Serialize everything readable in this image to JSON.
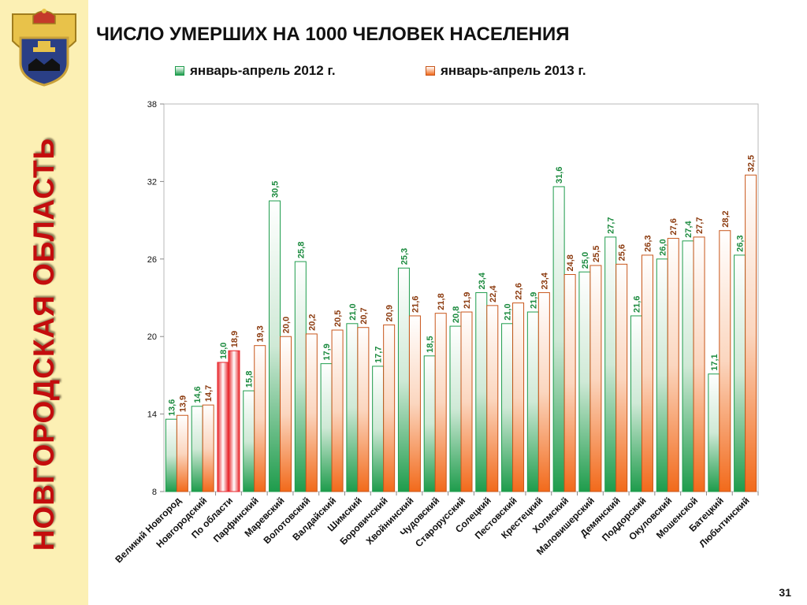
{
  "sidebar": {
    "label": "НОВГОРОДСКАЯ ОБЛАСТЬ",
    "label_color": "#c40d0d",
    "background": "#fcf0b4"
  },
  "header": {
    "title": "ЧИСЛО УМЕРШИХ НА 1000 ЧЕЛОВЕК НАСЕЛЕНИЯ"
  },
  "page_number": "31",
  "colors": {
    "green": "#1e9c4c",
    "orange": "#f26a1b",
    "red": "#e8262b",
    "label_green": "#1b8a3e",
    "label_brown": "#8b3a0e"
  },
  "chart_data": {
    "type": "bar",
    "title": "ЧИСЛО УМЕРШИХ НА 1000 ЧЕЛОВЕК НАСЕЛЕНИЯ",
    "ylim": [
      8,
      38
    ],
    "yticks": [
      "8",
      "14",
      "20",
      "26",
      "32",
      "38"
    ],
    "legend_position": "top",
    "highlight_category": "По области",
    "categories": [
      "Великий Новгород",
      "Новгородский",
      "По области",
      "Парфинский",
      "Маревский",
      "Волотовский",
      "Валдайский",
      "Шимский",
      "Боровичский",
      "Хвойнинский",
      "Чудовский",
      "Старорусский",
      "Солецкий",
      "Пестовский",
      "Крестецкий",
      "Холмский",
      "Маловишерский",
      "Демянский",
      "Поддорский",
      "Окуловский",
      "Мошенской",
      "Батецкий",
      "Любытинский"
    ],
    "series": [
      {
        "name": "январь-апрель 2012 г.",
        "values": [
          13.6,
          14.6,
          18.0,
          15.8,
          30.5,
          25.8,
          17.9,
          21.0,
          17.7,
          25.3,
          18.5,
          20.8,
          23.4,
          21.0,
          21.9,
          31.6,
          25.0,
          27.7,
          21.6,
          26.0,
          27.4,
          17.1,
          26.3
        ],
        "labels": [
          "13,6",
          "14,6",
          "18,0",
          "15,8",
          "30,5",
          "25,8",
          "17,9",
          "21,0",
          "17,7",
          "25,3",
          "18,5",
          "20,8",
          "23,4",
          "21,0",
          "21,9",
          "31,6",
          "25,0",
          "27,7",
          "21,6",
          "26,0",
          "27,4",
          "17,1",
          "26,3"
        ]
      },
      {
        "name": "январь-апрель 2013 г.",
        "values": [
          13.9,
          14.7,
          18.9,
          19.3,
          20.0,
          20.2,
          20.5,
          20.7,
          20.9,
          21.6,
          21.8,
          21.9,
          22.4,
          22.6,
          23.4,
          24.8,
          25.5,
          25.6,
          26.3,
          27.6,
          27.7,
          28.2,
          32.5
        ],
        "labels": [
          "13,9",
          "14,7",
          "18,9",
          "19,3",
          "20,0",
          "20,2",
          "20,5",
          "20,7",
          "20,9",
          "21,6",
          "21,8",
          "21,9",
          "22,4",
          "22,6",
          "23,4",
          "24,8",
          "25,5",
          "25,6",
          "26,3",
          "27,6",
          "27,7",
          "28,2",
          "32,5"
        ]
      }
    ]
  }
}
